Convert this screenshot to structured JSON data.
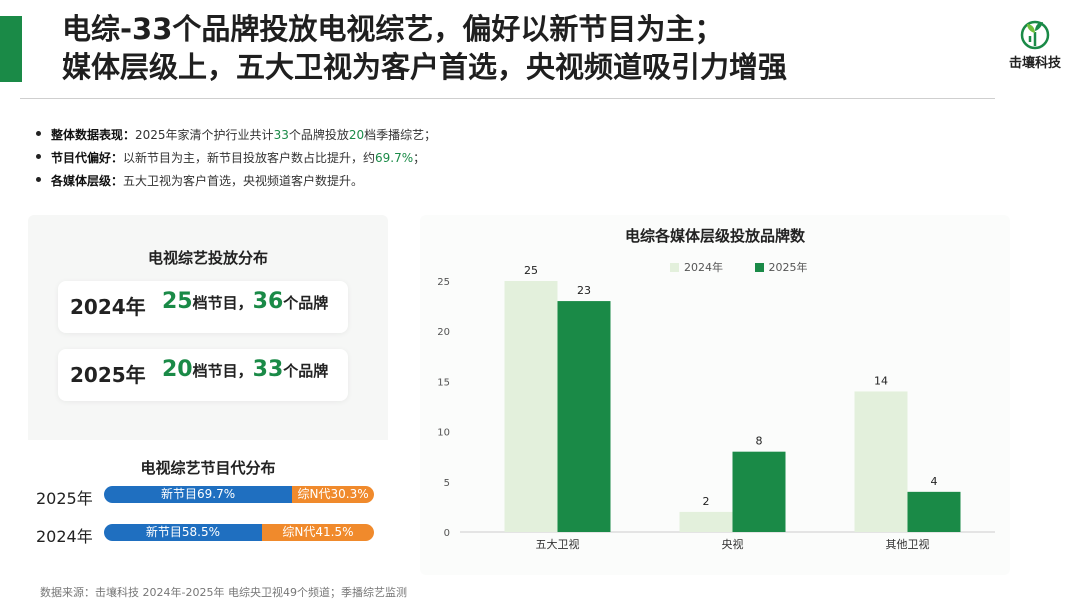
{
  "header": {
    "title_line1": "电综-33个品牌投放电视综艺，偏好以新节目为主；",
    "title_line2": "媒体层级上，五大卫视为客户首选，央视频道吸引力增强",
    "logo_text": "击壤科技"
  },
  "bullets": [
    {
      "label": "整体数据表现：",
      "parts": [
        "2025年家清个护行业共计",
        "33",
        "个品牌投放",
        "20",
        "档季播综艺；"
      ]
    },
    {
      "label": "节目代偏好：",
      "parts": [
        "以新节目为主，新节目投放客户数占比提升，约",
        "69.7%",
        "；"
      ]
    },
    {
      "label": "各媒体层级：",
      "parts": [
        "五大卫视为客户首选，央视频道客户数提升。"
      ]
    }
  ],
  "tv_distribution": {
    "title": "电视综艺投放分布",
    "rows": [
      {
        "year": "2024年",
        "programs": "25",
        "programs_unit": "档节目，",
        "brands": "36",
        "brands_unit": "个品牌"
      },
      {
        "year": "2025年",
        "programs": "20",
        "programs_unit": "档节目，",
        "brands": "33",
        "brands_unit": "个品牌"
      }
    ]
  },
  "generation": {
    "title": "电视综艺节目代分布",
    "rows": [
      {
        "year": "2025年",
        "new_label": "新节目69.7%",
        "new_pct": 69.7,
        "old_label": "综N代30.3%",
        "old_pct": 30.3
      },
      {
        "year": "2024年",
        "new_label": "新节目58.5%",
        "new_pct": 58.5,
        "old_label": "综N代41.5%",
        "old_pct": 41.5
      }
    ],
    "colors": {
      "new": "#1f6fc0",
      "old": "#f08a2c"
    }
  },
  "chart_data": {
    "type": "bar",
    "title": "电综各媒体层级投放品牌数",
    "categories": [
      "五大卫视",
      "央视",
      "其他卫视"
    ],
    "series": [
      {
        "name": "2024年",
        "values": [
          25,
          2,
          14
        ],
        "color": "#e3f0dc"
      },
      {
        "name": "2025年",
        "values": [
          23,
          8,
          4
        ],
        "color": "#1a8a47"
      }
    ],
    "ylim": [
      0,
      25
    ],
    "yticks": [
      0,
      5,
      10,
      15,
      20,
      25
    ],
    "legend": "top-center",
    "grid": false
  },
  "footer": {
    "source": "数据来源：击壤科技  2024年-2025年 电综央卫视49个频道；季播综艺监测"
  },
  "colors": {
    "accent": "#1a8a47"
  }
}
